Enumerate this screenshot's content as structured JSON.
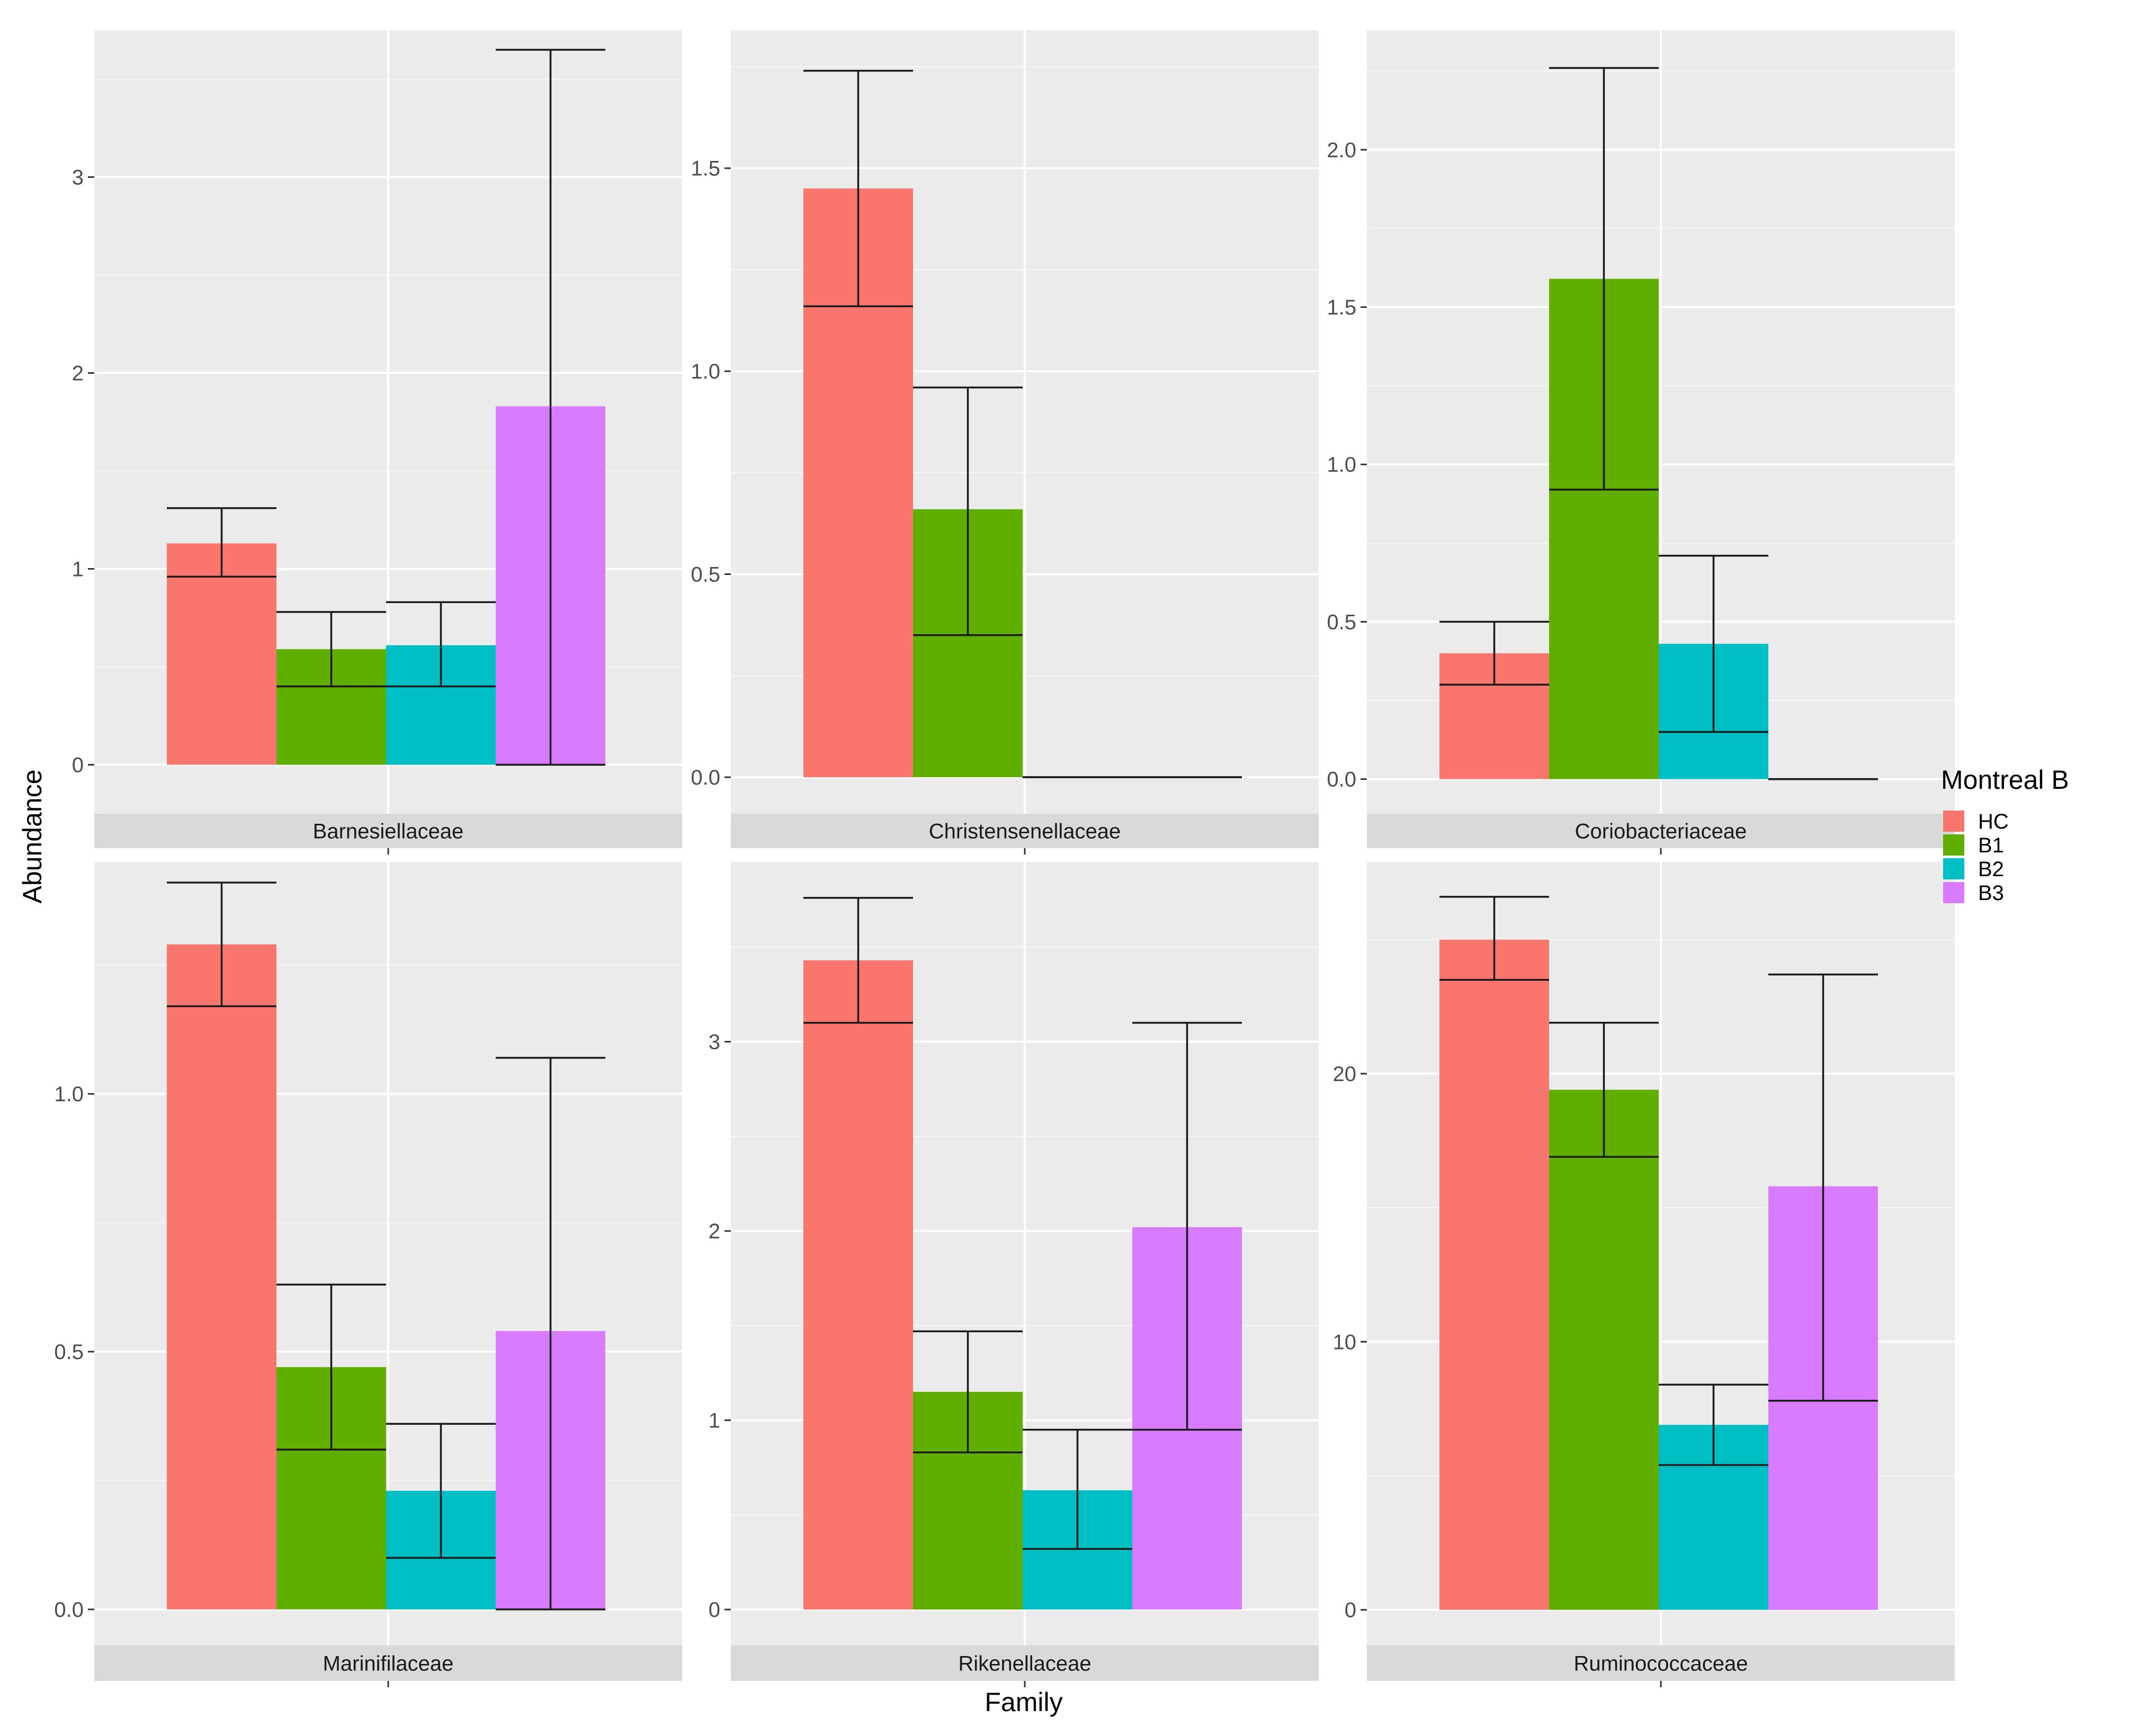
{
  "chart_data": {
    "type": "bar",
    "xlabel": "Family",
    "ylabel": "Abundance",
    "legend": {
      "title": "Montreal B",
      "position": "right",
      "items": [
        {
          "name": "HC",
          "color": "#F8766D"
        },
        {
          "name": "B1",
          "color": "#5FAE00"
        },
        {
          "name": "B2",
          "color": "#00BFC4"
        },
        {
          "name": "B3",
          "color": "#D97BFF"
        }
      ]
    },
    "grid": true,
    "panels": [
      {
        "family": "Barnesiellaceae",
        "ylim": [
          -0.25,
          3.75
        ],
        "yticks": [
          0,
          1,
          2,
          3
        ],
        "ytick_labels": [
          "0",
          "1",
          "2",
          "3"
        ],
        "bars": [
          {
            "group": "HC",
            "value": 1.13,
            "err_low": 0.96,
            "err_high": 1.31
          },
          {
            "group": "B1",
            "value": 0.59,
            "err_low": 0.4,
            "err_high": 0.78
          },
          {
            "group": "B2",
            "value": 0.61,
            "err_low": 0.4,
            "err_high": 0.83
          },
          {
            "group": "B3",
            "value": 1.83,
            "err_low": 0.0,
            "err_high": 3.65
          }
        ]
      },
      {
        "family": "Christensenellaceae",
        "ylim": [
          -0.09,
          1.84
        ],
        "yticks": [
          0,
          0.5,
          1.0,
          1.5
        ],
        "ytick_labels": [
          "0.0",
          "0.5",
          "1.0",
          "1.5"
        ],
        "bars": [
          {
            "group": "HC",
            "value": 1.45,
            "err_low": 1.16,
            "err_high": 1.74
          },
          {
            "group": "B1",
            "value": 0.66,
            "err_low": 0.35,
            "err_high": 0.96
          },
          {
            "group": "B2",
            "value": 0,
            "err_low": 0,
            "err_high": 0
          },
          {
            "group": "B3",
            "value": 0,
            "err_low": 0,
            "err_high": 0
          }
        ]
      },
      {
        "family": "Coriobacteriaceae",
        "ylim": [
          -0.11,
          2.38
        ],
        "yticks": [
          0,
          0.5,
          1.0,
          1.5,
          2.0
        ],
        "ytick_labels": [
          "0.0",
          "0.5",
          "1.0",
          "1.5",
          "2.0"
        ],
        "bars": [
          {
            "group": "HC",
            "value": 0.4,
            "err_low": 0.3,
            "err_high": 0.5
          },
          {
            "group": "B1",
            "value": 1.59,
            "err_low": 0.92,
            "err_high": 2.26
          },
          {
            "group": "B2",
            "value": 0.43,
            "err_low": 0.15,
            "err_high": 0.71
          },
          {
            "group": "B3",
            "value": 0,
            "err_low": 0,
            "err_high": 0
          }
        ]
      },
      {
        "family": "Marinifilaceae",
        "ylim": [
          -0.07,
          1.45
        ],
        "yticks": [
          0,
          0.5,
          1.0
        ],
        "ytick_labels": [
          "0.0",
          "0.5",
          "1.0"
        ],
        "bars": [
          {
            "group": "HC",
            "value": 1.29,
            "err_low": 1.17,
            "err_high": 1.41
          },
          {
            "group": "B1",
            "value": 0.47,
            "err_low": 0.31,
            "err_high": 0.63
          },
          {
            "group": "B2",
            "value": 0.23,
            "err_low": 0.1,
            "err_high": 0.36
          },
          {
            "group": "B3",
            "value": 0.54,
            "err_low": 0.0,
            "err_high": 1.07
          }
        ]
      },
      {
        "family": "Rikenellaceae",
        "ylim": [
          -0.19,
          3.95
        ],
        "yticks": [
          0,
          1,
          2,
          3
        ],
        "ytick_labels": [
          "0",
          "1",
          "2",
          "3"
        ],
        "bars": [
          {
            "group": "HC",
            "value": 3.43,
            "err_low": 3.1,
            "err_high": 3.76
          },
          {
            "group": "B1",
            "value": 1.15,
            "err_low": 0.83,
            "err_high": 1.47
          },
          {
            "group": "B2",
            "value": 0.63,
            "err_low": 0.32,
            "err_high": 0.95
          },
          {
            "group": "B3",
            "value": 2.02,
            "err_low": 0.95,
            "err_high": 3.1
          }
        ]
      },
      {
        "family": "Ruminococcaceae",
        "ylim": [
          -1.33,
          27.9
        ],
        "yticks": [
          0,
          10,
          20
        ],
        "ytick_labels": [
          "0",
          "10",
          "20"
        ],
        "bars": [
          {
            "group": "HC",
            "value": 25.0,
            "err_low": 23.5,
            "err_high": 26.6
          },
          {
            "group": "B1",
            "value": 19.4,
            "err_low": 16.9,
            "err_high": 21.9
          },
          {
            "group": "B2",
            "value": 6.9,
            "err_low": 5.4,
            "err_high": 8.4
          },
          {
            "group": "B3",
            "value": 15.8,
            "err_low": 7.8,
            "err_high": 23.7
          }
        ]
      }
    ]
  }
}
